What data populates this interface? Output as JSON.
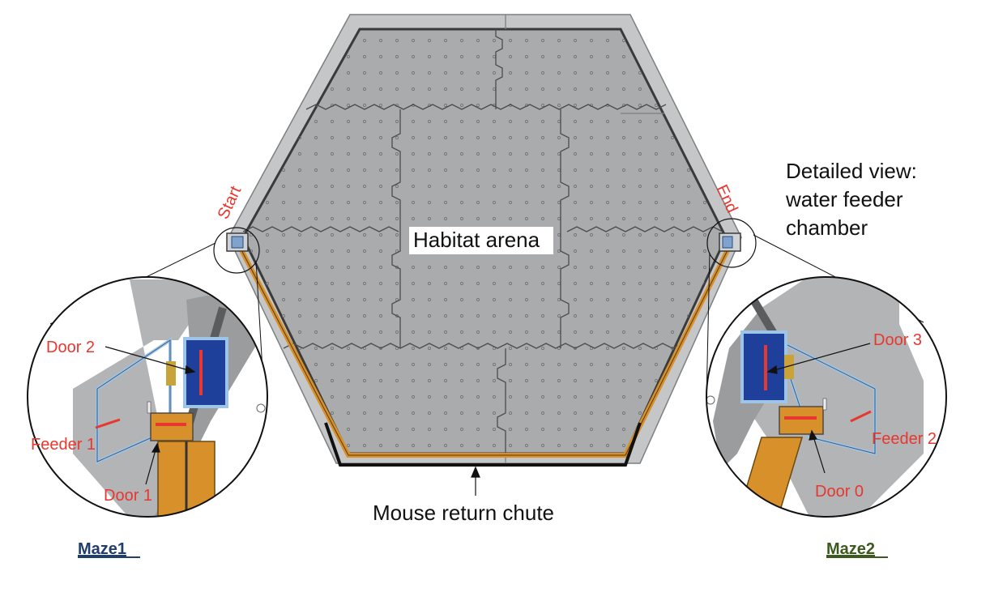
{
  "labels": {
    "start": "Start",
    "end": "End",
    "habitat": "Habitat arena",
    "chute": "Mouse return chute",
    "detail_line1": "Detailed view:",
    "detail_line2": "water feeder",
    "detail_line3": "chamber",
    "door2": "Door 2",
    "feeder1": "Feeder 1",
    "door1": "Door 1",
    "door3": "Door 3",
    "feeder2": "Feeder 2",
    "door0": "Door 0",
    "maze1": "Maze1",
    "maze2": "Maze2"
  },
  "colors": {
    "label_red": "#e8372e",
    "maze1_blue": "#1f3d6e",
    "maze2_green": "#3b5a1e",
    "arena_gray": "#a9abad",
    "frame_gray": "#c4c6c8",
    "chute_orange": "#d7902a",
    "chamber_blue": "#1e3f9a"
  }
}
